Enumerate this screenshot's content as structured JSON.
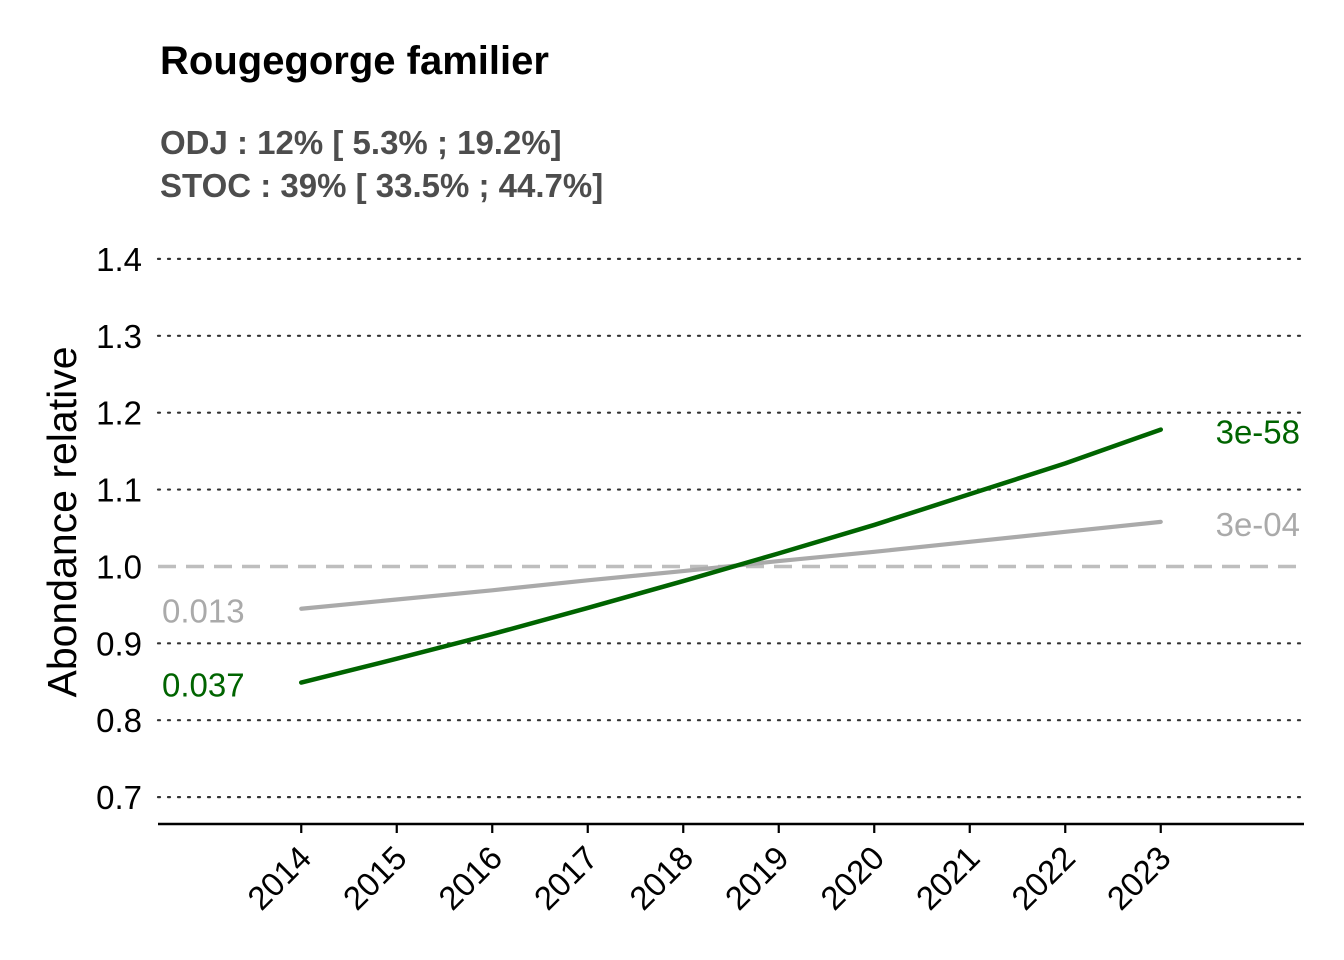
{
  "chart_data": {
    "type": "line",
    "title": "Rougegorge familier",
    "subtitle_lines": [
      "ODJ : 12% [ 5.3% ; 19.2%]",
      "STOC : 39% [ 33.5% ; 44.7%]"
    ],
    "xlabel": "",
    "ylabel": "Abondance relative",
    "x": [
      2014,
      2015,
      2016,
      2017,
      2018,
      2019,
      2020,
      2021,
      2022,
      2023
    ],
    "x_tick_labels": [
      "2014",
      "2015",
      "2016",
      "2017",
      "2018",
      "2019",
      "2020",
      "2021",
      "2022",
      "2023"
    ],
    "xlim": [
      2012.5,
      2024.5
    ],
    "ylim": [
      0.665,
      1.435
    ],
    "y_ticks": [
      0.7,
      0.8,
      0.9,
      1.0,
      1.1,
      1.2,
      1.3,
      1.4
    ],
    "y_tick_labels": [
      "0.7",
      "0.8",
      "0.9",
      "1.0",
      "1.1",
      "1.2",
      "1.3",
      "1.4"
    ],
    "grid": "horizontal-dotted",
    "reference_line": {
      "y": 1.0,
      "style": "dashed",
      "color": "#bebebe"
    },
    "series": [
      {
        "color": "#aaaaaa",
        "values": [
          0.945,
          0.957,
          0.969,
          0.982,
          0.994,
          1.007,
          1.019,
          1.032,
          1.045,
          1.058
        ],
        "start_label": "0.013",
        "end_label": "3e-04"
      },
      {
        "color": "#006400",
        "values": [
          0.849,
          0.88,
          0.912,
          0.946,
          0.981,
          1.017,
          1.054,
          1.094,
          1.134,
          1.178
        ],
        "start_label": "0.037",
        "end_label": "3e-58"
      }
    ]
  }
}
